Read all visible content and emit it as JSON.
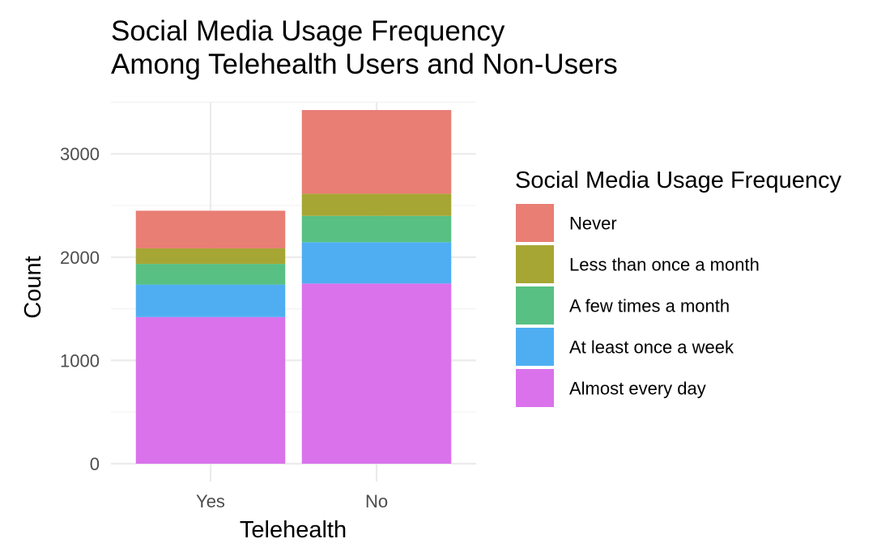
{
  "chart_data": {
    "type": "bar",
    "stacked": true,
    "title": "Social Media Usage Frequency\nAmong Telehealth Users and Non-Users",
    "xlabel": "Telehealth",
    "ylabel": "Count",
    "categories": [
      "Yes",
      "No"
    ],
    "ylim": [
      0,
      3500
    ],
    "yticks": [
      0,
      1000,
      2000,
      3000
    ],
    "grid": true,
    "legend": {
      "title": "Social Media Usage Frequency",
      "position": "right"
    },
    "series": [
      {
        "name": "Almost every day",
        "color": "#DA72EC",
        "values": [
          1420,
          1745
        ]
      },
      {
        "name": "At least once a week",
        "color": "#4FAEF2",
        "values": [
          315,
          400
        ]
      },
      {
        "name": "A few times a month",
        "color": "#58C082",
        "values": [
          200,
          255
        ]
      },
      {
        "name": "Less than once a month",
        "color": "#A6A634",
        "values": [
          150,
          215
        ]
      },
      {
        "name": "Never",
        "color": "#E87E74",
        "values": [
          365,
          810
        ]
      }
    ],
    "legend_order": [
      "Never",
      "Less than once a month",
      "A few times a month",
      "At least once a week",
      "Almost every day"
    ]
  }
}
